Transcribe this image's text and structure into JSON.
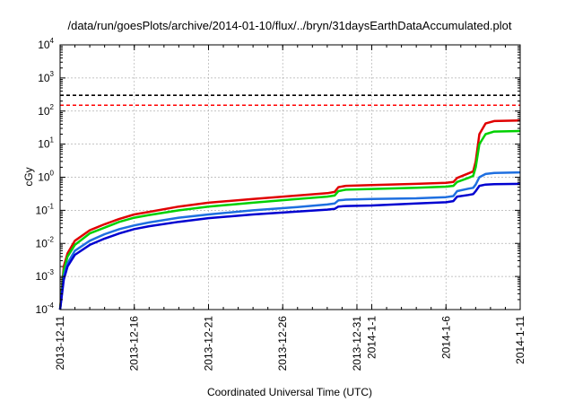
{
  "chart_data": {
    "type": "line",
    "title": "/data/run/goesPlots/archive/2014-01-10/flux/../bryn/31daysEarthDataAccumulated.plot",
    "xlabel": "Coordinated Universal Time (UTC)",
    "ylabel": "cGy",
    "y_scale": "log",
    "ylim": [
      0.0001,
      10000
    ],
    "xlim": [
      "2013-12-11",
      "2014-01-11"
    ],
    "grid": true,
    "y_ticks": [
      {
        "value": 0.0001,
        "base": "10",
        "exp": "-4"
      },
      {
        "value": 0.001,
        "base": "10",
        "exp": "-3"
      },
      {
        "value": 0.01,
        "base": "10",
        "exp": "-2"
      },
      {
        "value": 0.1,
        "base": "10",
        "exp": "-1"
      },
      {
        "value": 1,
        "base": "10",
        "exp": "0"
      },
      {
        "value": 10,
        "base": "10",
        "exp": "1"
      },
      {
        "value": 100,
        "base": "10",
        "exp": "2"
      },
      {
        "value": 1000,
        "base": "10",
        "exp": "3"
      },
      {
        "value": 10000,
        "base": "10",
        "exp": "4"
      }
    ],
    "x_ticks": [
      {
        "value": "2013-12-11",
        "label": "2013-12-11"
      },
      {
        "value": "2013-12-16",
        "label": "2013-12-16"
      },
      {
        "value": "2013-12-21",
        "label": "2013-12-21"
      },
      {
        "value": "2013-12-26",
        "label": "2013-12-26"
      },
      {
        "value": "2013-12-31",
        "label": "2013-12-31"
      },
      {
        "value": "2014-01-01",
        "label": "2014-1-1"
      },
      {
        "value": "2014-01-06",
        "label": "2014-1-6"
      },
      {
        "value": "2014-01-11",
        "label": "2014-1-11"
      }
    ],
    "reference_lines": [
      {
        "y": 300,
        "color": "#000000"
      },
      {
        "y": 150,
        "color": "#ff0000"
      }
    ],
    "series": [
      {
        "color": "#e00000",
        "points": [
          [
            "2013-12-11T00:00",
            0.0001
          ],
          [
            "2013-12-11T06:00",
            0.002
          ],
          [
            "2013-12-11T12:00",
            0.005
          ],
          [
            "2013-12-12T00:00",
            0.012
          ],
          [
            "2013-12-13T00:00",
            0.025
          ],
          [
            "2013-12-14T00:00",
            0.038
          ],
          [
            "2013-12-15T00:00",
            0.055
          ],
          [
            "2013-12-16T00:00",
            0.075
          ],
          [
            "2013-12-17T00:00",
            0.09
          ],
          [
            "2013-12-19T00:00",
            0.13
          ],
          [
            "2013-12-21T00:00",
            0.17
          ],
          [
            "2013-12-24T00:00",
            0.22
          ],
          [
            "2013-12-27T00:00",
            0.28
          ],
          [
            "2013-12-29T00:00",
            0.33
          ],
          [
            "2013-12-29T12:00",
            0.36
          ],
          [
            "2013-12-29T18:00",
            0.5
          ],
          [
            "2013-12-30T06:00",
            0.55
          ],
          [
            "2014-01-01T00:00",
            0.58
          ],
          [
            "2014-01-04T00:00",
            0.63
          ],
          [
            "2014-01-06T00:00",
            0.68
          ],
          [
            "2014-01-06T12:00",
            0.72
          ],
          [
            "2014-01-06T18:00",
            0.95
          ],
          [
            "2014-01-07T12:00",
            1.3
          ],
          [
            "2014-01-07T20:00",
            1.5
          ],
          [
            "2014-01-08T00:00",
            3
          ],
          [
            "2014-01-08T06:00",
            20
          ],
          [
            "2014-01-08T16:00",
            42
          ],
          [
            "2014-01-09T06:00",
            50
          ],
          [
            "2014-01-11T00:00",
            52
          ]
        ]
      },
      {
        "color": "#00d000",
        "points": [
          [
            "2013-12-11T00:00",
            0.0001
          ],
          [
            "2013-12-11T06:00",
            0.0015
          ],
          [
            "2013-12-11T12:00",
            0.004
          ],
          [
            "2013-12-12T00:00",
            0.009
          ],
          [
            "2013-12-13T00:00",
            0.02
          ],
          [
            "2013-12-14T00:00",
            0.03
          ],
          [
            "2013-12-15T00:00",
            0.045
          ],
          [
            "2013-12-16T00:00",
            0.06
          ],
          [
            "2013-12-17T00:00",
            0.072
          ],
          [
            "2013-12-19T00:00",
            0.1
          ],
          [
            "2013-12-21T00:00",
            0.13
          ],
          [
            "2013-12-24T00:00",
            0.17
          ],
          [
            "2013-12-27T00:00",
            0.22
          ],
          [
            "2013-12-29T00:00",
            0.26
          ],
          [
            "2013-12-29T12:00",
            0.28
          ],
          [
            "2013-12-29T18:00",
            0.38
          ],
          [
            "2013-12-30T06:00",
            0.42
          ],
          [
            "2014-01-01T00:00",
            0.44
          ],
          [
            "2014-01-04T00:00",
            0.48
          ],
          [
            "2014-01-06T00:00",
            0.52
          ],
          [
            "2014-01-06T12:00",
            0.55
          ],
          [
            "2014-01-06T18:00",
            0.72
          ],
          [
            "2014-01-07T12:00",
            0.95
          ],
          [
            "2014-01-07T20:00",
            1.1
          ],
          [
            "2014-01-08T00:00",
            2
          ],
          [
            "2014-01-08T06:00",
            10
          ],
          [
            "2014-01-08T16:00",
            20
          ],
          [
            "2014-01-09T06:00",
            24
          ],
          [
            "2014-01-11T00:00",
            25
          ]
        ]
      },
      {
        "color": "#1e6fe0",
        "points": [
          [
            "2013-12-11T00:00",
            0.0001
          ],
          [
            "2013-12-11T06:00",
            0.001
          ],
          [
            "2013-12-11T12:00",
            0.0025
          ],
          [
            "2013-12-12T00:00",
            0.006
          ],
          [
            "2013-12-13T00:00",
            0.012
          ],
          [
            "2013-12-14T00:00",
            0.019
          ],
          [
            "2013-12-15T00:00",
            0.027
          ],
          [
            "2013-12-16T00:00",
            0.035
          ],
          [
            "2013-12-17T00:00",
            0.043
          ],
          [
            "2013-12-19T00:00",
            0.06
          ],
          [
            "2013-12-21T00:00",
            0.075
          ],
          [
            "2013-12-24T00:00",
            0.1
          ],
          [
            "2013-12-27T00:00",
            0.125
          ],
          [
            "2013-12-29T00:00",
            0.15
          ],
          [
            "2013-12-29T12:00",
            0.16
          ],
          [
            "2013-12-29T18:00",
            0.2
          ],
          [
            "2013-12-30T06:00",
            0.21
          ],
          [
            "2014-01-01T00:00",
            0.22
          ],
          [
            "2014-01-04T00:00",
            0.23
          ],
          [
            "2014-01-06T00:00",
            0.25
          ],
          [
            "2014-01-06T12:00",
            0.27
          ],
          [
            "2014-01-06T18:00",
            0.38
          ],
          [
            "2014-01-07T12:00",
            0.45
          ],
          [
            "2014-01-07T20:00",
            0.48
          ],
          [
            "2014-01-08T00:00",
            0.6
          ],
          [
            "2014-01-08T06:00",
            1.0
          ],
          [
            "2014-01-08T16:00",
            1.25
          ],
          [
            "2014-01-09T06:00",
            1.35
          ],
          [
            "2014-01-11T00:00",
            1.4
          ]
        ]
      },
      {
        "color": "#0000d0",
        "points": [
          [
            "2013-12-11T00:00",
            0.0001
          ],
          [
            "2013-12-11T06:00",
            0.0008
          ],
          [
            "2013-12-11T12:00",
            0.002
          ],
          [
            "2013-12-12T00:00",
            0.0045
          ],
          [
            "2013-12-13T00:00",
            0.009
          ],
          [
            "2013-12-14T00:00",
            0.014
          ],
          [
            "2013-12-15T00:00",
            0.02
          ],
          [
            "2013-12-16T00:00",
            0.027
          ],
          [
            "2013-12-17T00:00",
            0.033
          ],
          [
            "2013-12-19T00:00",
            0.045
          ],
          [
            "2013-12-21T00:00",
            0.058
          ],
          [
            "2013-12-24T00:00",
            0.075
          ],
          [
            "2013-12-27T00:00",
            0.092
          ],
          [
            "2013-12-29T00:00",
            0.105
          ],
          [
            "2013-12-29T12:00",
            0.11
          ],
          [
            "2013-12-29T18:00",
            0.13
          ],
          [
            "2013-12-30T06:00",
            0.135
          ],
          [
            "2014-01-01T00:00",
            0.14
          ],
          [
            "2014-01-04T00:00",
            0.16
          ],
          [
            "2014-01-06T00:00",
            0.175
          ],
          [
            "2014-01-06T12:00",
            0.19
          ],
          [
            "2014-01-06T18:00",
            0.26
          ],
          [
            "2014-01-07T12:00",
            0.29
          ],
          [
            "2014-01-07T20:00",
            0.31
          ],
          [
            "2014-01-08T00:00",
            0.38
          ],
          [
            "2014-01-08T06:00",
            0.55
          ],
          [
            "2014-01-08T16:00",
            0.6
          ],
          [
            "2014-01-09T06:00",
            0.62
          ],
          [
            "2014-01-11T00:00",
            0.63
          ]
        ]
      }
    ]
  }
}
